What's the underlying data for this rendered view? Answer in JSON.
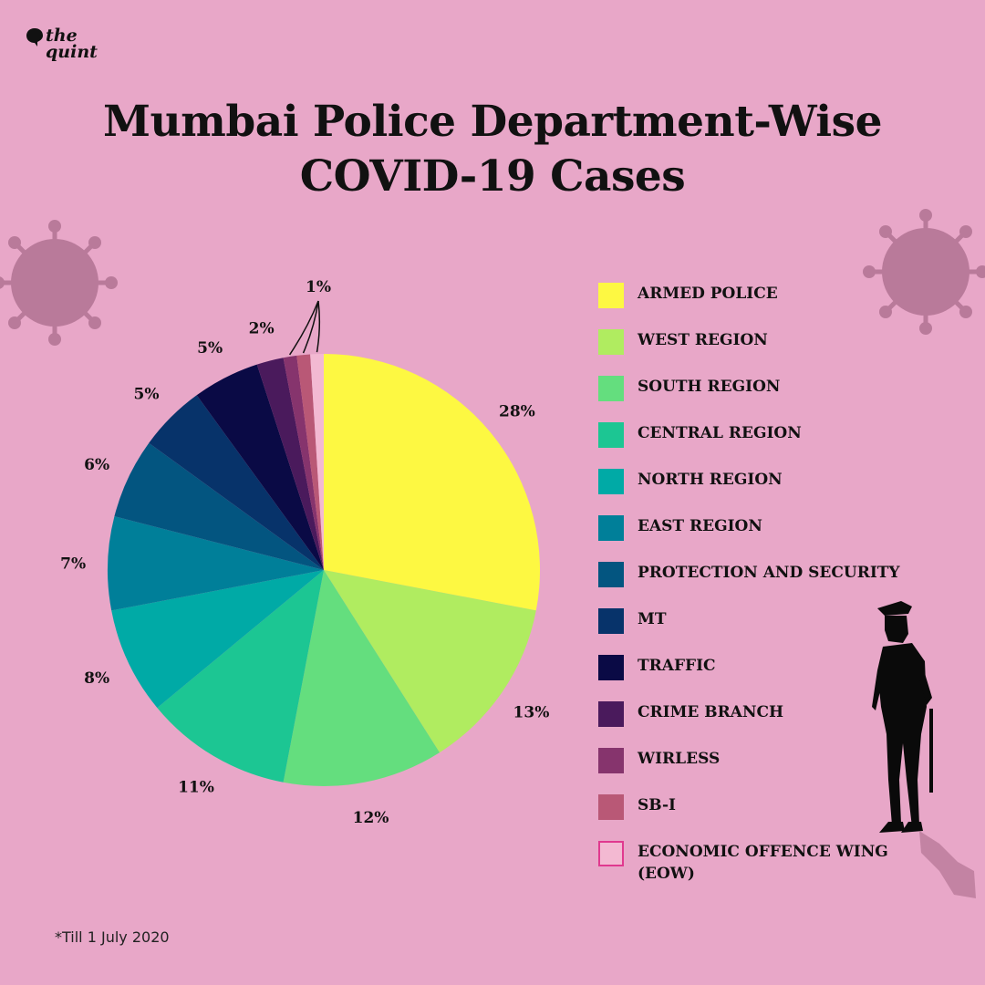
{
  "brand": {
    "logo_text": "the\nquint"
  },
  "title": {
    "line1": "Mumbai Police Department-Wise",
    "line2": "COVID-19 Cases"
  },
  "footnote": "*Till 1 July 2020",
  "chart_data": {
    "type": "pie",
    "title": "Mumbai Police Department-Wise COVID-19 Cases",
    "legend_position": "right",
    "slices": [
      {
        "label": "ARMED POLICE",
        "value": 28,
        "value_label": "28%",
        "color": "#fdf842"
      },
      {
        "label": "WEST REGION",
        "value": 13,
        "value_label": "13%",
        "color": "#b0ec60"
      },
      {
        "label": "SOUTH REGION",
        "value": 12,
        "value_label": "12%",
        "color": "#64de7e"
      },
      {
        "label": "CENTRAL REGION",
        "value": 11,
        "value_label": "11%",
        "color": "#1cc693"
      },
      {
        "label": "NORTH REGION",
        "value": 8,
        "value_label": "8%",
        "color": "#00aaa6"
      },
      {
        "label": "EAST REGION",
        "value": 7,
        "value_label": "7%",
        "color": "#007f99"
      },
      {
        "label": "PROTECTION AND SECURITY",
        "value": 6,
        "value_label": "6%",
        "color": "#035580"
      },
      {
        "label": "MT",
        "value": 5,
        "value_label": "5%",
        "color": "#07336a"
      },
      {
        "label": "TRAFFIC",
        "value": 5,
        "value_label": "5%",
        "color": "#0a0a45"
      },
      {
        "label": "CRIME BRANCH",
        "value": 2,
        "value_label": "2%",
        "color": "#4a1a5c"
      },
      {
        "label": "WIRLESS",
        "value": 1,
        "value_label": "",
        "color": "#86346d"
      },
      {
        "label": "SB-I",
        "value": 1,
        "value_label": "1%",
        "color": "#b95876"
      },
      {
        "label": "ECONOMIC OFFENCE WING (EOW)",
        "value": 1,
        "value_label": "",
        "color": "#f3b9d2",
        "outline": "#e0398f"
      }
    ]
  }
}
